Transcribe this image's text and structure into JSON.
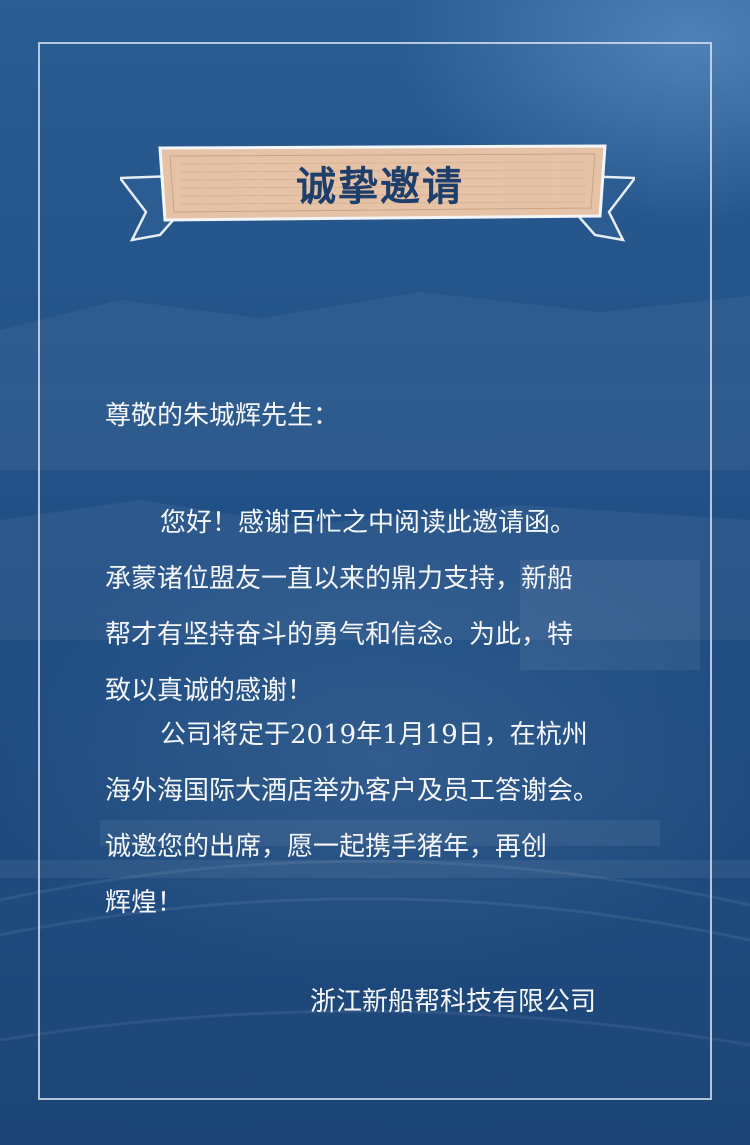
{
  "banner": {
    "title": "诚挚邀请"
  },
  "letter": {
    "greeting": "尊敬的朱城辉先生：",
    "paragraph1": [
      "您好！感谢百忙之中阅读此邀请函。",
      "承蒙诸位盟友一直以来的鼎力支持，新船",
      "帮才有坚持奋斗的勇气和信念。为此，特",
      "致以真诚的感谢！"
    ],
    "paragraph2": [
      "公司将定于2019年1月19日，在杭州",
      "海外海国际大酒店举办客户及员工答谢会。",
      "诚邀您的出席，愿一起携手猪年，再创",
      "辉煌！"
    ],
    "signature": "浙江新船帮科技有限公司"
  },
  "colors": {
    "background": "#23548a",
    "frame": "#d6e0ec",
    "banner_fill": "#e6c3a6",
    "banner_text": "#1e3f6c",
    "body_text": "#f4f6fa"
  }
}
